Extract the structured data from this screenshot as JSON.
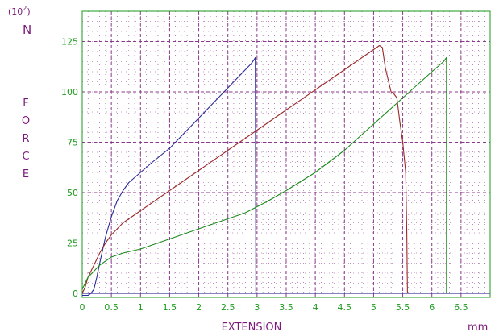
{
  "chart_data": {
    "type": "line",
    "title": "",
    "xlabel": "EXTENSION",
    "xunit": "mm",
    "ylabel_letters": [
      "F",
      "O",
      "R",
      "C",
      "E"
    ],
    "yunit": "N",
    "yscale_prefix": "(10",
    "yscale_exp": "2",
    "yscale_suffix": ")",
    "xlim": [
      0,
      7
    ],
    "ylim": [
      -2,
      140
    ],
    "xticks": [
      "0",
      "0.5",
      "1",
      "1.5",
      "2",
      "2.5",
      "3",
      "3.5",
      "4",
      "4.5",
      "5",
      "5.5",
      "6",
      "6.5"
    ],
    "yticks": [
      "0",
      "25",
      "50",
      "75",
      "100",
      "125"
    ],
    "grid": true,
    "colors": {
      "axes": "#1a9a1a",
      "grid": "#8a3a8a",
      "baseline": "#3a3aa0",
      "labels": "#7a1a7a"
    },
    "series": [
      {
        "color": "#2a2a9a",
        "x": [
          0,
          0.1,
          0.15,
          0.2,
          0.25,
          0.3,
          0.4,
          0.5,
          0.6,
          0.7,
          0.8,
          1.0,
          1.2,
          1.5,
          1.8,
          2.0,
          2.3,
          2.6,
          2.9,
          2.95,
          2.97,
          2.98
        ],
        "y": [
          -1,
          -1,
          0,
          2,
          8,
          15,
          28,
          38,
          46,
          51,
          55,
          60,
          65,
          72,
          81,
          87,
          96,
          105,
          114,
          116,
          117,
          0
        ]
      },
      {
        "color": "#9a2a2a",
        "x": [
          0,
          0.05,
          0.1,
          0.2,
          0.3,
          0.4,
          0.5,
          0.7,
          1.0,
          1.5,
          2.0,
          2.5,
          3.0,
          3.5,
          4.0,
          4.5,
          5.0,
          5.1,
          5.15,
          5.2,
          5.3,
          5.35,
          5.4,
          5.45,
          5.5,
          5.55,
          5.57,
          5.58
        ],
        "y": [
          0,
          3,
          8,
          14,
          20,
          25,
          29,
          35,
          41,
          51,
          61,
          71,
          81,
          91,
          101,
          111,
          121,
          123,
          122,
          112,
          100,
          99,
          97,
          85,
          75,
          60,
          30,
          0
        ]
      },
      {
        "color": "#1a8a1a",
        "x": [
          0,
          0.05,
          0.1,
          0.2,
          0.3,
          0.4,
          0.5,
          0.7,
          1.0,
          1.3,
          1.6,
          1.9,
          2.2,
          2.5,
          2.8,
          3.0,
          3.2,
          3.5,
          4.0,
          4.5,
          5.0,
          5.5,
          6.0,
          6.2,
          6.25,
          6.25
        ],
        "y": [
          2,
          5,
          8,
          11,
          14,
          16,
          18,
          20,
          22,
          25,
          28,
          31,
          34,
          37,
          40,
          43,
          46,
          51,
          60,
          71,
          84,
          97,
          110,
          115,
          117,
          0
        ]
      }
    ]
  }
}
